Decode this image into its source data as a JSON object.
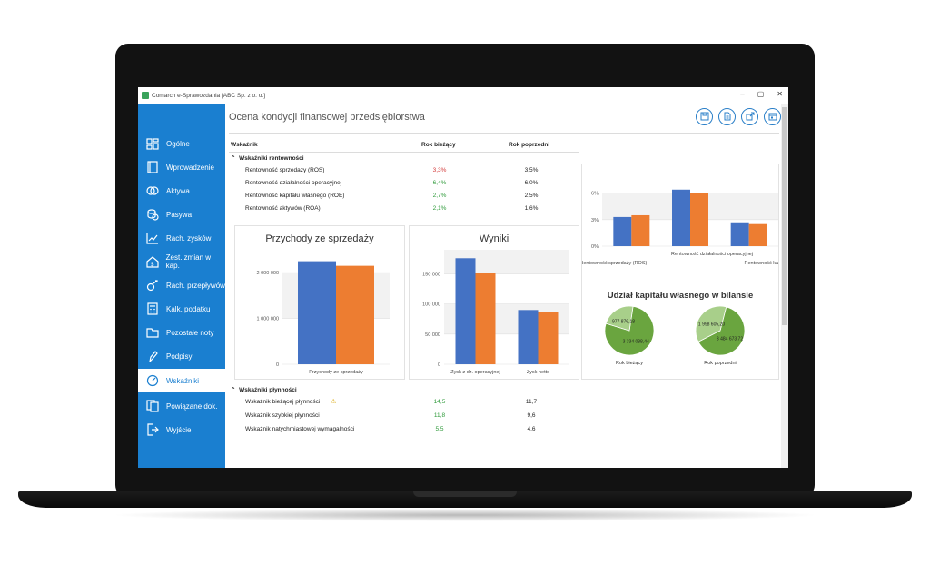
{
  "window": {
    "title": "Comarch e-Sprawozdania [ABC Sp. z o. o.]",
    "controls": [
      "–",
      "▢",
      "✕"
    ]
  },
  "sidebar": {
    "items": [
      {
        "label": "Ogólne",
        "icon": "dashboard-icon",
        "active": false
      },
      {
        "label": "Wprowadzenie",
        "icon": "book-icon",
        "active": false
      },
      {
        "label": "Aktywa",
        "icon": "coins-icon",
        "active": false
      },
      {
        "label": "Pasywa",
        "icon": "coins-stack-icon",
        "active": false
      },
      {
        "label": "Rach. zysków",
        "icon": "chart-growth-icon",
        "active": false
      },
      {
        "label": "Zest. zmian w kap.",
        "icon": "house-icon",
        "active": false
      },
      {
        "label": "Rach. przepływów",
        "icon": "flow-icon",
        "active": false
      },
      {
        "label": "Kalk. podatku",
        "icon": "calculator-icon",
        "active": false
      },
      {
        "label": "Pozostałe noty",
        "icon": "folder-icon",
        "active": false
      },
      {
        "label": "Podpisy",
        "icon": "pen-icon",
        "active": false
      },
      {
        "label": "Wskaźniki",
        "icon": "gauge-icon",
        "active": true
      },
      {
        "label": "Powiązane dok.",
        "icon": "documents-icon",
        "active": false
      },
      {
        "label": "Wyjście",
        "icon": "exit-icon",
        "active": false
      }
    ]
  },
  "main": {
    "title": "Ocena kondycji finansowej przedsiębiorstwa",
    "toolbar": [
      "save-icon",
      "document-icon",
      "export-icon",
      "calendar-icon"
    ],
    "columns": {
      "indicator": "Wskaźnik",
      "current": "Rok bieżący",
      "previous": "Rok poprzedni"
    },
    "profitability": {
      "heading": "Wskaźniki rentowności",
      "rows": [
        {
          "label": "Rentowność sprzedaży (ROS)",
          "current": "3,3%",
          "previous": "3,5%",
          "status": "down"
        },
        {
          "label": "Rentowność działalności operacyjnej",
          "current": "6,4%",
          "previous": "6,0%",
          "status": "up"
        },
        {
          "label": "Rentowność kapitału własnego (ROE)",
          "current": "2,7%",
          "previous": "2,5%",
          "status": "up"
        },
        {
          "label": "Rentowność aktywów (ROA)",
          "current": "2,1%",
          "previous": "1,6%",
          "status": "up"
        }
      ]
    },
    "liquidity": {
      "heading": "Wskaźniki płynności",
      "warning_icon": "warning-icon",
      "rows": [
        {
          "label": "Wskaźnik bieżącej płynności",
          "current": "14,5",
          "previous": "11,7"
        },
        {
          "label": "Wskaźnik szybkiej płynności",
          "current": "11,8",
          "previous": "9,6"
        },
        {
          "label": "Wskaźnik natychmiastowej wymagalności",
          "current": "5,5",
          "previous": "4,6"
        }
      ]
    },
    "colors": {
      "current": "#4472c4",
      "previous": "#ed7d31",
      "good": "#2e9a3a",
      "bad": "#d33a3a",
      "accent": "#1a7fd0"
    }
  },
  "chart_data": [
    {
      "type": "bar",
      "title": "Przychody ze sprzedaży",
      "categories": [
        "Przychody ze sprzedaży"
      ],
      "series": [
        {
          "values": [
            2250000
          ]
        },
        {
          "values": [
            2150000
          ]
        }
      ],
      "yticks": [
        "0",
        "1 000 000",
        "2 000 000"
      ],
      "ylim": [
        0,
        2500000
      ]
    },
    {
      "type": "bar",
      "title": "Wyniki",
      "categories": [
        "Zysk z dz. operacyjnej",
        "Zysk netto"
      ],
      "series": [
        {
          "values": [
            176000,
            90000
          ]
        },
        {
          "values": [
            152000,
            87000
          ]
        }
      ],
      "yticks": [
        "0",
        "50 000",
        "100 000",
        "150 000"
      ],
      "ylim": [
        0,
        190000
      ]
    },
    {
      "type": "bar",
      "categories": [
        "Rentowność sprzedaży (ROS)",
        "Rentowność działalności operacyjnej",
        "Rentowność kapitału własnego"
      ],
      "category_labels": [
        "Rentowność sprzedaży (ROS)",
        "Rentowność działalności operacyjnej",
        "Rentowność kapitału własn"
      ],
      "series": [
        {
          "values": [
            3.3,
            6.4,
            2.7
          ]
        },
        {
          "values": [
            3.5,
            6.0,
            2.5
          ]
        }
      ],
      "yticks": [
        "0%",
        "3%",
        "6%"
      ],
      "ylim": [
        0,
        7.2
      ]
    },
    {
      "type": "pie",
      "title": "Udział kapitału własnego w bilansie",
      "pies": [
        {
          "label": "Rok bieżący",
          "slices": [
            {
              "value": 3334088.44,
              "text": "3 334 088,44"
            },
            {
              "value": 977876.18,
              "text": "977 876,18"
            }
          ]
        },
        {
          "label": "Rok poprzedni",
          "slices": [
            {
              "value": 3484673.72,
              "text": "3 484 673,72"
            },
            {
              "value": 1998605.2,
              "text": "1 998 605,20"
            }
          ]
        }
      ],
      "colors": [
        "#6aa53f",
        "#a8cf8a"
      ]
    }
  ]
}
